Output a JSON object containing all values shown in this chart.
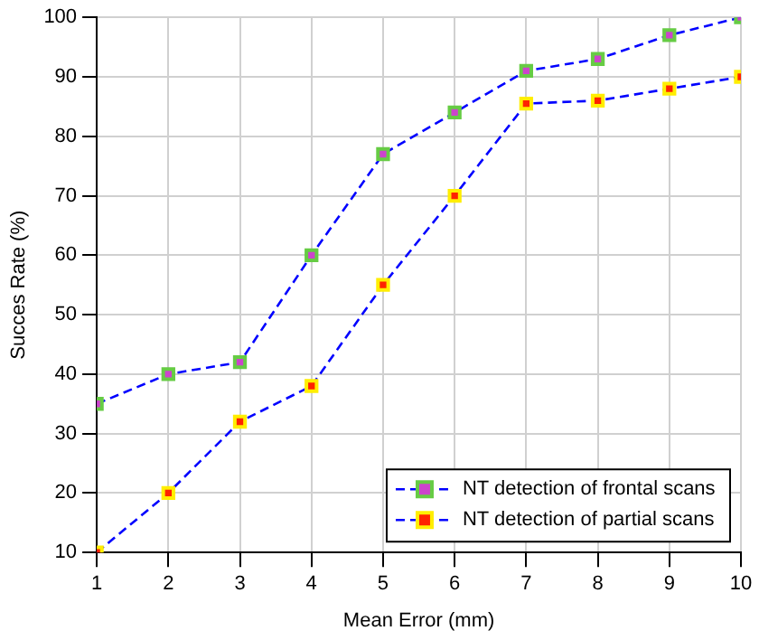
{
  "chart_data": {
    "type": "line",
    "xlabel": "Mean Error (mm)",
    "ylabel": "Succes Rate (%)",
    "x": [
      1,
      2,
      3,
      4,
      5,
      6,
      7,
      8,
      9,
      10
    ],
    "series": [
      {
        "name": "NT detection of frontal scans",
        "color": "#0000ff",
        "values": [
          35,
          40,
          42,
          60,
          77,
          84,
          91,
          93,
          97,
          100
        ]
      },
      {
        "name": "NT detection of partial scans",
        "color": "#0000ff",
        "values": [
          10,
          20,
          32,
          38,
          55,
          70,
          85.5,
          86,
          88,
          90
        ]
      }
    ],
    "xlim": [
      1,
      10
    ],
    "xticks": [
      1,
      2,
      3,
      4,
      5,
      6,
      7,
      8,
      9,
      10
    ],
    "ylim": [
      10,
      100
    ],
    "yticks": [
      10,
      20,
      30,
      40,
      50,
      60,
      70,
      80,
      90,
      100
    ],
    "grid": true,
    "legend": "bottom right",
    "marker": "square",
    "line_style": "dashed"
  }
}
